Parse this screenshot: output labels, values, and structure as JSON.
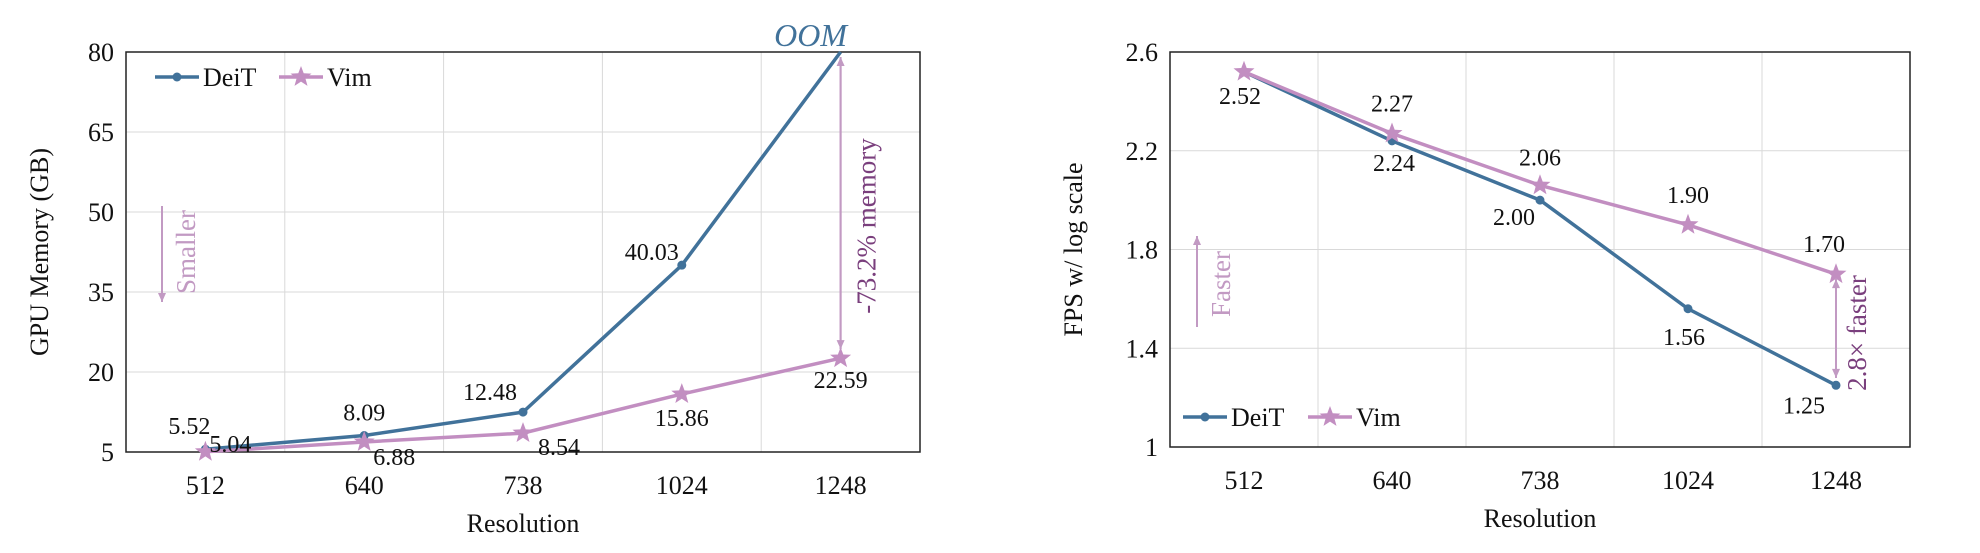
{
  "colors": {
    "deit": "#41729a",
    "vim": "#c28ec1",
    "annot": "#c29ac3",
    "annot_text": "#7a3f7d",
    "grid": "#d9d9d9",
    "axis": "#222222"
  },
  "chart_data": [
    {
      "type": "line",
      "categories": [
        "512",
        "640",
        "738",
        "1024",
        "1248"
      ],
      "xlabel": "Resolution",
      "ylabel": "GPU Memory (GB)",
      "ylim": [
        5,
        80
      ],
      "yticks": [
        5,
        20,
        35,
        50,
        65,
        80
      ],
      "grid": true,
      "legend_position": "top-left",
      "series": [
        {
          "name": "DeiT",
          "values": [
            5.52,
            8.09,
            12.48,
            40.03,
            80
          ],
          "labels": [
            "5.52",
            "8.09",
            "12.48",
            "40.03",
            ""
          ],
          "marker": "circle"
        },
        {
          "name": "Vim",
          "values": [
            5.04,
            6.88,
            8.54,
            15.86,
            22.59
          ],
          "labels": [
            "5.04",
            "6.88",
            "8.54",
            "15.86",
            "22.59"
          ],
          "marker": "star"
        }
      ],
      "annotations": {
        "oom": "OOM",
        "direction": "Smaller",
        "gap": "-73.2% memory"
      }
    },
    {
      "type": "line",
      "categories": [
        "512",
        "640",
        "738",
        "1024",
        "1248"
      ],
      "xlabel": "Resolution",
      "ylabel": "FPS w/ log scale",
      "ylim": [
        1,
        2.6
      ],
      "yticks": [
        "1",
        "1.4",
        "1.8",
        "2.2",
        "2.6"
      ],
      "grid": true,
      "legend_position": "bottom-left",
      "series": [
        {
          "name": "DeiT",
          "values": [
            2.52,
            2.24,
            2.0,
            1.56,
            1.25
          ],
          "labels": [
            "",
            "2.24",
            "2.00",
            "1.56",
            "1.25"
          ],
          "marker": "circle"
        },
        {
          "name": "Vim",
          "values": [
            2.52,
            2.27,
            2.06,
            1.9,
            1.7
          ],
          "labels": [
            "2.52",
            "2.27",
            "2.06",
            "1.90",
            "1.70"
          ],
          "marker": "star"
        }
      ],
      "annotations": {
        "direction": "Faster",
        "gap": "2.8× faster"
      }
    }
  ]
}
